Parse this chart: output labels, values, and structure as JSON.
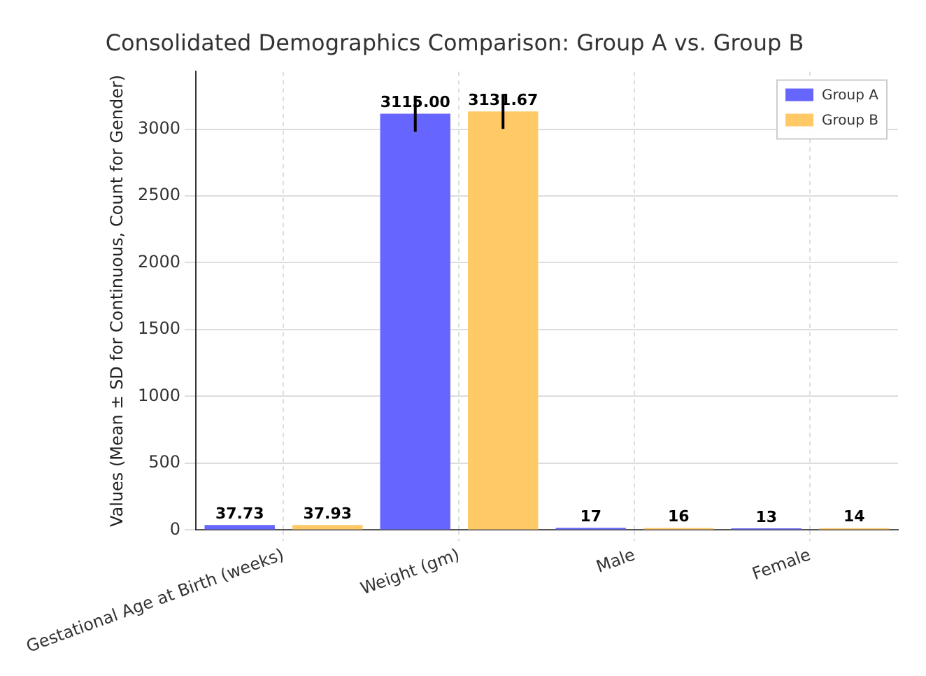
{
  "chart_data": {
    "type": "bar",
    "title": "Consolidated Demographics Comparison: Group A vs. Group B",
    "ylabel": "Values (Mean ± SD for Continuous, Count for Gender)",
    "categories": [
      "Gestational Age at Birth (weeks)",
      "Weight (gm)",
      "Male",
      "Female"
    ],
    "series": [
      {
        "name": "Group A",
        "color": "#6666ff",
        "values": [
          37.73,
          3115.0,
          17,
          13
        ],
        "errors": [
          null,
          135,
          null,
          null
        ],
        "value_labels": [
          "37.73",
          "3115.00",
          "17",
          "13"
        ]
      },
      {
        "name": "Group B",
        "color": "#ffc966",
        "values": [
          37.93,
          3131.67,
          16,
          14
        ],
        "errors": [
          null,
          130,
          null,
          null
        ],
        "value_labels": [
          "37.93",
          "3131.67",
          "16",
          "14"
        ]
      }
    ],
    "ylim": [
      0,
      3430
    ],
    "yticks": [
      0,
      500,
      1000,
      1500,
      2000,
      2500,
      3000
    ],
    "grid": true,
    "legend": "top right"
  }
}
